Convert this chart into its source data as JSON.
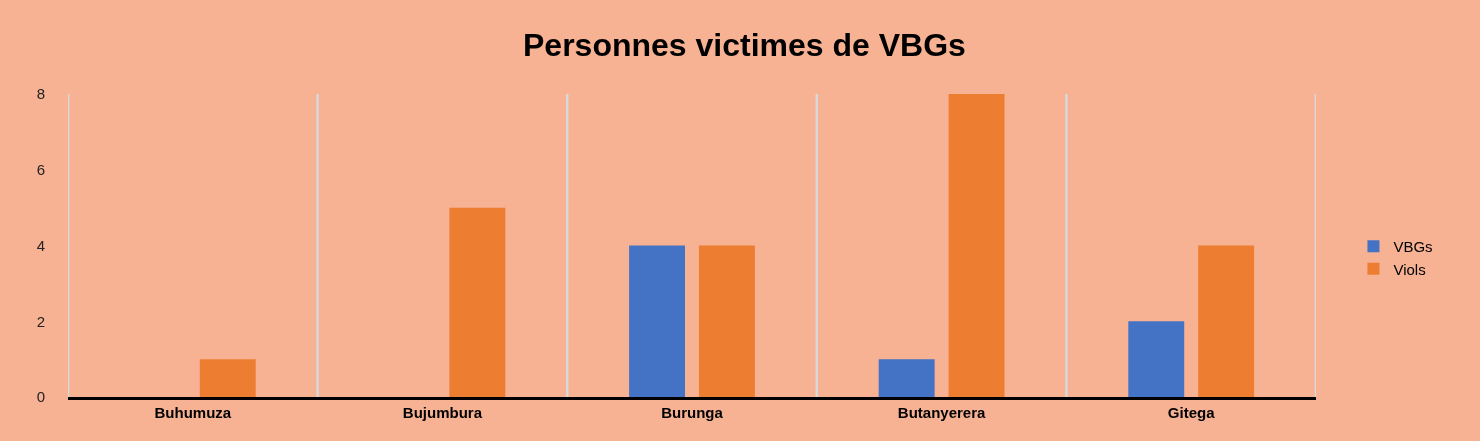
{
  "chart_data": {
    "type": "bar",
    "title": "Personnes victimes de VBGs",
    "categories": [
      "Buhumuza",
      "Bujumbura",
      "Burunga",
      "Butanyerera",
      "Gitega"
    ],
    "series": [
      {
        "name": "VBGs",
        "color": "#4472c4",
        "values": [
          null,
          null,
          4,
          1,
          2
        ]
      },
      {
        "name": "Viols",
        "color": "#ed7d31",
        "values": [
          1,
          5,
          4,
          8,
          4
        ]
      }
    ],
    "ylim": [
      0,
      8
    ],
    "yticks": [
      0,
      2,
      4,
      6,
      8
    ],
    "grid": "x",
    "legend": "right"
  }
}
